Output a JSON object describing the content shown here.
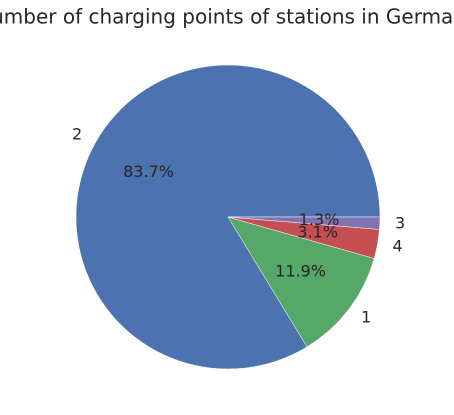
{
  "chart_data": {
    "type": "pie",
    "title": "Number of charging points of stations in Germany",
    "categories": [
      "2",
      "1",
      "4",
      "3"
    ],
    "values": [
      83.7,
      11.9,
      3.1,
      1.3
    ],
    "value_labels": [
      "83.7%",
      "11.9%",
      "3.1%",
      "1.3%"
    ],
    "colors": [
      "#4c72b0",
      "#55a868",
      "#c44e52",
      "#8172b2"
    ]
  }
}
